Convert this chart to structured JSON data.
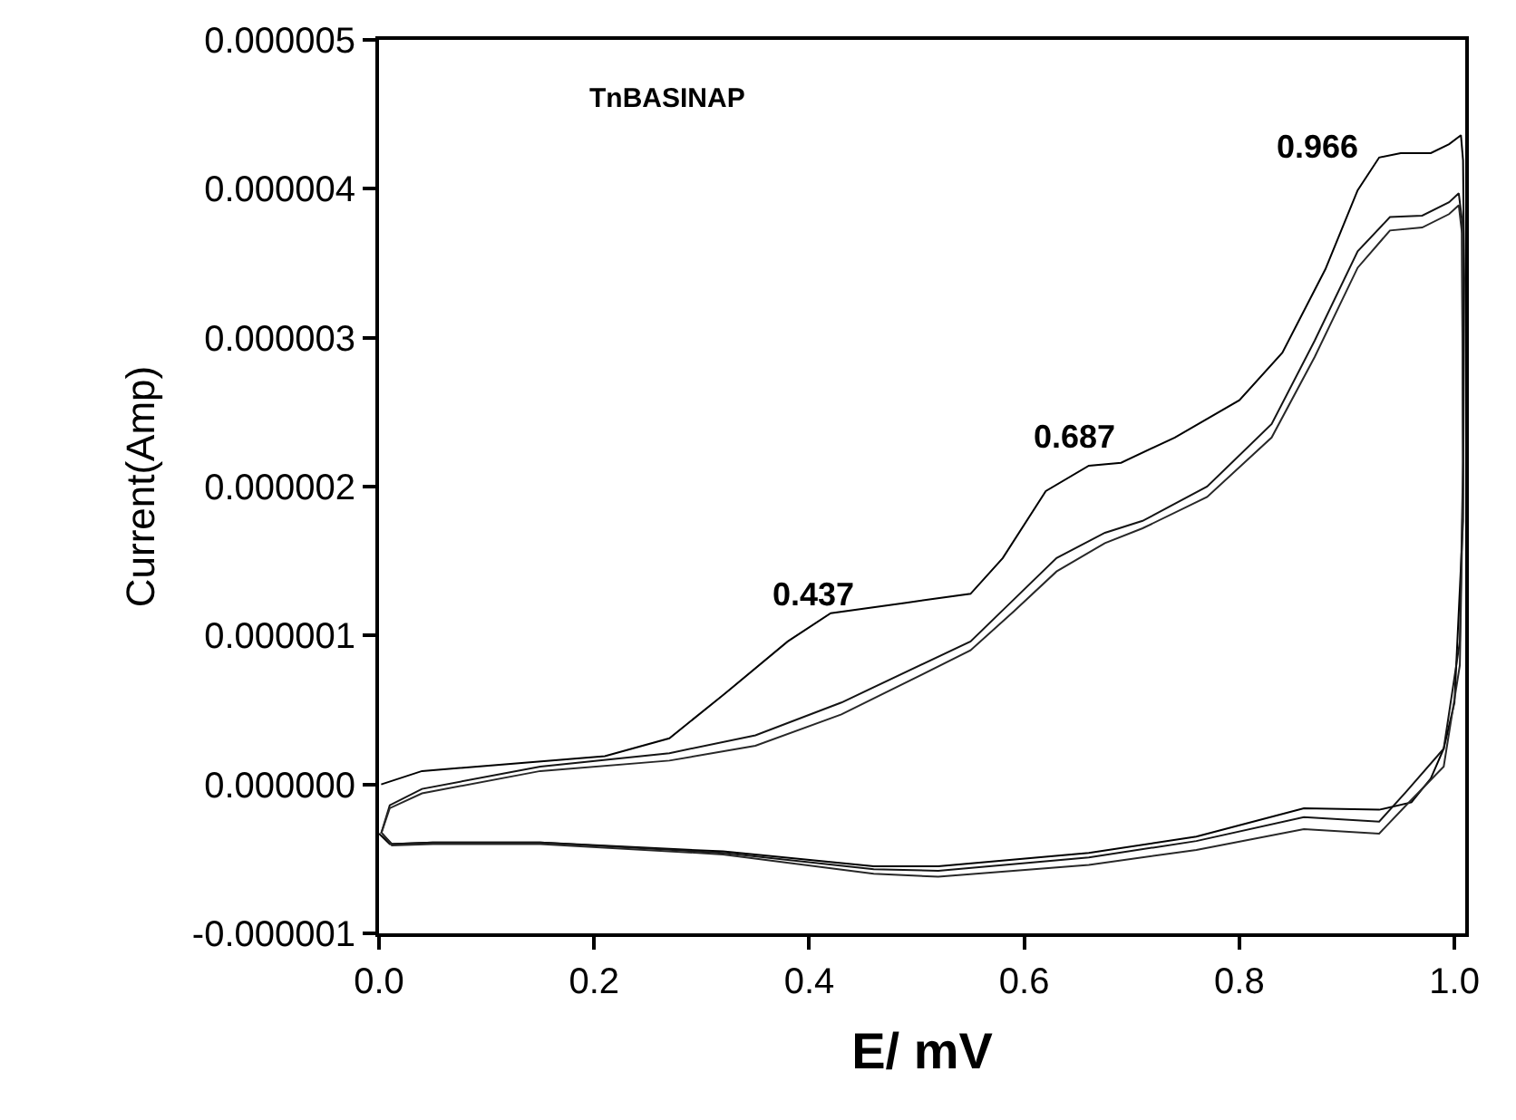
{
  "chart_data": {
    "type": "line",
    "xlabel": "E/ mV",
    "ylabel": "Current(Amp)",
    "annotations": [
      "TnBASINAP",
      "0.437",
      "0.687",
      "0.966"
    ],
    "series": [
      {
        "color": "#000000",
        "x": [
          0.002,
          0.04,
          0.21,
          0.27,
          0.32,
          0.38,
          0.42,
          0.49,
          0.55,
          0.58,
          0.62,
          0.66,
          0.69,
          0.74,
          0.8,
          0.84,
          0.88,
          0.91,
          0.93,
          0.95,
          0.978,
          0.995,
          1.006,
          1.008,
          1.009,
          1.008,
          1.0,
          0.99,
          0.978,
          0.96,
          0.93,
          0.86,
          0.76,
          0.66,
          0.52,
          0.46,
          0.32,
          0.15,
          0.05,
          0.01,
          0.0
        ],
        "values": [
          0.0,
          9e-08,
          1.9e-07,
          3.1e-07,
          6e-07,
          9.6e-07,
          1.15e-06,
          1.22e-06,
          1.28e-06,
          1.52e-06,
          1.97e-06,
          2.14e-06,
          2.16e-06,
          2.33e-06,
          2.58e-06,
          2.9e-06,
          3.46e-06,
          3.99e-06,
          4.21e-06,
          4.24e-06,
          4.24e-06,
          4.3e-06,
          4.36e-06,
          4.19e-06,
          3.4e-06,
          1.77e-06,
          5.5e-07,
          2.4e-07,
          4e-08,
          -1.2e-07,
          -1.7e-07,
          -1.6e-07,
          -3.5e-07,
          -4.6e-07,
          -5.5e-07,
          -5.5e-07,
          -4.5e-07,
          -3.9e-07,
          -3.9e-07,
          -4e-07,
          -3.3e-07
        ]
      },
      {
        "color": "#141414",
        "x": [
          0.002,
          0.01,
          0.04,
          0.15,
          0.27,
          0.35,
          0.43,
          0.55,
          0.59,
          0.63,
          0.675,
          0.71,
          0.77,
          0.83,
          0.87,
          0.91,
          0.94,
          0.97,
          0.995,
          1.004,
          1.007,
          1.008,
          1.005,
          0.99,
          0.955,
          0.93,
          0.86,
          0.76,
          0.66,
          0.52,
          0.46,
          0.32,
          0.15,
          0.05,
          0.012,
          0.003
        ],
        "values": [
          -3.3e-07,
          -1.4e-07,
          -3e-08,
          1.2e-07,
          2.1e-07,
          3.3e-07,
          5.5e-07,
          9.6e-07,
          1.24e-06,
          1.52e-06,
          1.69e-06,
          1.77e-06,
          2e-06,
          2.42e-06,
          2.98e-06,
          3.58e-06,
          3.81e-06,
          3.82e-06,
          3.91e-06,
          3.97e-06,
          3.79e-06,
          2.17e-06,
          9.6e-07,
          2.4e-07,
          -5e-08,
          -2.5e-07,
          -2.2e-07,
          -3.8e-07,
          -4.9e-07,
          -5.8e-07,
          -5.7e-07,
          -4.6e-07,
          -3.9e-07,
          -3.9e-07,
          -4e-07,
          -3.3e-07
        ]
      },
      {
        "color": "#282828",
        "x": [
          0.002,
          0.01,
          0.04,
          0.15,
          0.27,
          0.35,
          0.43,
          0.55,
          0.59,
          0.63,
          0.675,
          0.71,
          0.77,
          0.83,
          0.87,
          0.91,
          0.94,
          0.97,
          0.995,
          1.004,
          1.007,
          1.008,
          1.005,
          0.99,
          0.955,
          0.93,
          0.86,
          0.76,
          0.66,
          0.52,
          0.46,
          0.32,
          0.15,
          0.05,
          0.012,
          0.003
        ],
        "values": [
          -3.3e-07,
          -1.6e-07,
          -6e-08,
          9e-08,
          1.6e-07,
          2.6e-07,
          4.7e-07,
          9e-07,
          1.16e-06,
          1.43e-06,
          1.62e-06,
          1.72e-06,
          1.93e-06,
          2.33e-06,
          2.87e-06,
          3.47e-06,
          3.72e-06,
          3.74e-06,
          3.83e-06,
          3.89e-06,
          3.7e-06,
          2e-06,
          8e-07,
          1.2e-07,
          -1.4e-07,
          -3.3e-07,
          -3e-07,
          -4.4e-07,
          -5.4e-07,
          -6.2e-07,
          -6e-07,
          -4.7e-07,
          -4e-07,
          -4e-07,
          -4.1e-07,
          -3.3e-07
        ]
      }
    ],
    "xlim": [
      0,
      1.01
    ],
    "ylim": [
      -1e-06,
      5e-06
    ],
    "xticks": [
      {
        "value": 0,
        "label": "0.0"
      },
      {
        "value": 0.2,
        "label": "0.2"
      },
      {
        "value": 0.4,
        "label": "0.4"
      },
      {
        "value": 0.6,
        "label": "0.6"
      },
      {
        "value": 0.8,
        "label": "0.8"
      },
      {
        "value": 1.0,
        "label": "1.0"
      }
    ],
    "yticks": [
      {
        "value": -1e-06,
        "label": "-0.000001"
      },
      {
        "value": 0,
        "label": "0.000000"
      },
      {
        "value": 1e-06,
        "label": "0.000001"
      },
      {
        "value": 2e-06,
        "label": "0.000002"
      },
      {
        "value": 3e-06,
        "label": "0.000003"
      },
      {
        "value": 4e-06,
        "label": "0.000004"
      },
      {
        "value": 5e-06,
        "label": "0.000005"
      }
    ],
    "marker": "none",
    "line_style": "solid"
  }
}
